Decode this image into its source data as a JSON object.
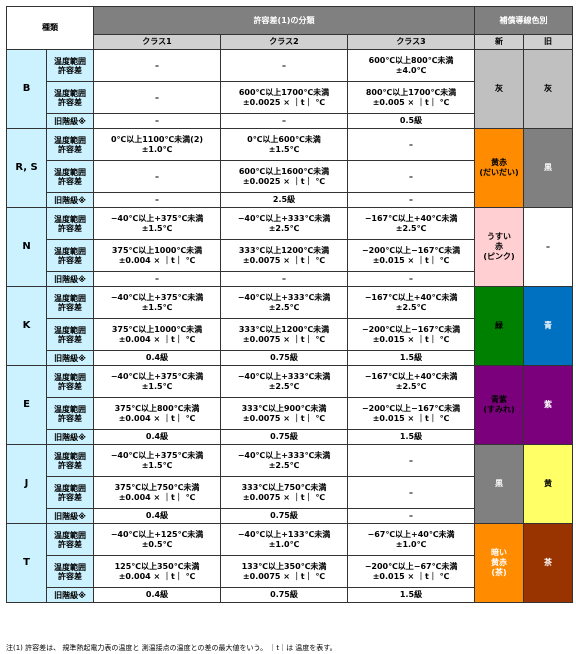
{
  "header": {
    "type_label": "種類",
    "tolerance_class_title": "許容差(1)の分類",
    "class1": "クラス1",
    "class2": "クラス2",
    "class3": "クラス3",
    "lead_color_title": "補償導線色別",
    "new_label": "新",
    "old_label": "旧"
  },
  "colors": {
    "light_blue": "#ccf2ff",
    "gray": "#c0c0c0",
    "orange": "#ff8c00",
    "dark_gray": "#808080",
    "pink": "#ffcfd2",
    "green": "#008000",
    "blue": "#0070c0",
    "purple": "#7b007b",
    "light_yellow": "#ffff66",
    "black": "#000000",
    "brown": "#993300"
  },
  "rows": [
    {
      "type": "B",
      "label_range": "温度範囲\n許容差",
      "label_range2": "温度範囲\n許容差",
      "label_old": "旧階級※",
      "r1": [
        "–",
        "–",
        "600℃以上800℃未満\n±4.0℃"
      ],
      "r2": [
        "–",
        "600℃以上1700℃未満\n±0.0025 × ｜t｜ ℃",
        "800℃以上1700℃未満\n±0.005 × ｜t｜ ℃"
      ],
      "r3": [
        "–",
        "–",
        "0.5級"
      ],
      "new_color_text": "灰",
      "new_color": "#c0c0c0",
      "new_text_color": "#000000",
      "old_color_text": "灰",
      "old_color": "#c0c0c0",
      "old_text_color": "#000000"
    },
    {
      "type": "R, S",
      "label_range": "温度範囲\n許容差",
      "label_range2": "温度範囲\n許容差",
      "label_old": "旧階級※",
      "r1": [
        "0℃以上1100℃未満(2)\n±1.0℃",
        "0℃以上600℃未満\n±1.5℃",
        "–"
      ],
      "r2": [
        "–",
        "600℃以上1600℃未満\n±0.0025 × ｜t｜ ℃",
        "–"
      ],
      "r3": [
        "–",
        "2.5級",
        "–"
      ],
      "new_color_text": "黄赤\n(だいだい)",
      "new_color": "#ff8c00",
      "new_text_color": "#000000",
      "old_color_text": "黒",
      "old_color": "#808080",
      "old_text_color": "#ffffff"
    },
    {
      "type": "N",
      "label_range": "温度範囲\n許容差",
      "label_range2": "温度範囲\n許容差",
      "label_old": "旧階級※",
      "r1": [
        "−40℃以上+375℃未満\n±1.5℃",
        "−40℃以上+333℃未満\n±2.5℃",
        "−167℃以上+40℃未満\n±2.5℃"
      ],
      "r2": [
        "375℃以上1000℃未満\n±0.004 × ｜t｜ ℃",
        "333℃以上1200℃未満\n±0.0075 × ｜t｜ ℃",
        "−200℃以上−167℃未満\n±0.015 × ｜t｜ ℃"
      ],
      "r3": [
        "–",
        "–",
        "–"
      ],
      "new_color_text": "うすい\n赤\n(ピンク)",
      "new_color": "#ffcfd2",
      "new_text_color": "#000000",
      "old_color_text": "–",
      "old_color": "#ffffff",
      "old_text_color": "#000000"
    },
    {
      "type": "K",
      "label_range": "温度範囲\n許容差",
      "label_range2": "温度範囲\n許容差",
      "label_old": "旧階級※",
      "r1": [
        "−40℃以上+375℃未満\n±1.5℃",
        "−40℃以上+333℃未満\n±2.5℃",
        "−167℃以上+40℃未満\n±2.5℃"
      ],
      "r2": [
        "375℃以上1000℃未満\n±0.004 × ｜t｜ ℃",
        "333℃以上1200℃未満\n±0.0075 × ｜t｜ ℃",
        "−200℃以上−167℃未満\n±0.015 × ｜t｜ ℃"
      ],
      "r3": [
        "0.4級",
        "0.75級",
        "1.5級"
      ],
      "new_color_text": "緑",
      "new_color": "#008000",
      "new_text_color": "#000000",
      "old_color_text": "青",
      "old_color": "#0070c0",
      "old_text_color": "#ffffff"
    },
    {
      "type": "E",
      "label_range": "温度範囲\n許容差",
      "label_range2": "温度範囲\n許容差",
      "label_old": "旧階級※",
      "r1": [
        "−40℃以上+375℃未満\n±1.5℃",
        "−40℃以上+333℃未満\n±2.5℃",
        "−167℃以上+40℃未満\n±2.5℃"
      ],
      "r2": [
        "375℃以上800℃未満\n±0.004 × ｜t｜ ℃",
        "333℃以上900℃未満\n±0.0075 × ｜t｜ ℃",
        "−200℃以上−167℃未満\n±0.015 × ｜t｜ ℃"
      ],
      "r3": [
        "0.4級",
        "0.75級",
        "1.5級"
      ],
      "new_color_text": "青紫\n(すみれ)",
      "new_color": "#7b007b",
      "new_text_color": "#000000",
      "old_color_text": "紫",
      "old_color": "#7b007b",
      "old_text_color": "#ffffff"
    },
    {
      "type": "J",
      "label_range": "温度範囲\n許容差",
      "label_range2": "温度範囲\n許容差",
      "label_old": "旧階級※",
      "r1": [
        "−40℃以上+375℃未満\n±1.5℃",
        "−40℃以上+333℃未満\n±2.5℃",
        "–"
      ],
      "r2": [
        "375℃以上750℃未満\n±0.004 × ｜t｜ ℃",
        "333℃以上750℃未満\n±0.0075 × ｜t｜ ℃",
        "–"
      ],
      "r3": [
        "0.4級",
        "0.75級",
        "–"
      ],
      "new_color_text": "黒",
      "new_color": "#808080",
      "new_text_color": "#ffffff",
      "old_color_text": "黄",
      "old_color": "#ffff66",
      "old_text_color": "#000000"
    },
    {
      "type": "T",
      "label_range": "温度範囲\n許容差",
      "label_range2": "温度範囲\n許容差",
      "label_old": "旧階級※",
      "r1": [
        "−40℃以上+125℃未満\n±0.5℃",
        "−40℃以上+133℃未満\n±1.0℃",
        "−67℃以上+40℃未満\n±1.0℃"
      ],
      "r2": [
        "125℃以上350℃未満\n±0.004 × ｜t｜ ℃",
        "133℃以上350℃未満\n±0.0075 × ｜t｜ ℃",
        "−200℃以上−67℃未満\n±0.015 × ｜t｜ ℃"
      ],
      "r3": [
        "0.4級",
        "0.75級",
        "1.5級"
      ],
      "new_color_text": "暗い\n黄赤\n(茶)",
      "new_color": "#ff8c00",
      "new_text_color": "#ffffff",
      "old_color_text": "茶",
      "old_color": "#993300",
      "old_text_color": "#ffffff"
    }
  ],
  "footnote": "注(1) 許容差は、 規準熱起電力表の温度と 測温接点の温度との差の最大値をいう。 ｜t｜は 温度を表す。"
}
